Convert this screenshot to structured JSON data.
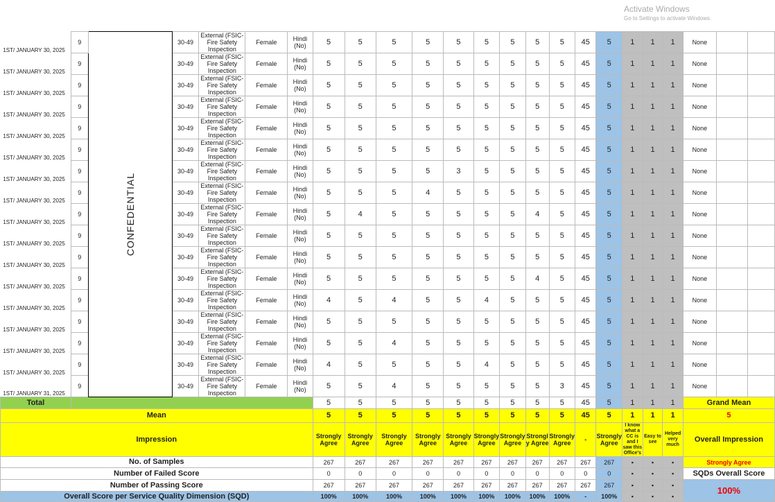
{
  "confidential_label": "CONFEDENTIAL",
  "rows": [
    {
      "date": "1ST/ JANUARY 30, 2025",
      "scores": [
        5,
        5,
        5,
        5,
        5,
        5,
        5,
        5,
        5
      ]
    },
    {
      "date": "1ST/ JANUARY 30, 2025",
      "scores": [
        5,
        5,
        5,
        5,
        5,
        5,
        5,
        5,
        5
      ]
    },
    {
      "date": "1ST/ JANUARY 30, 2025",
      "scores": [
        5,
        5,
        5,
        5,
        5,
        5,
        5,
        5,
        5
      ]
    },
    {
      "date": "1ST/ JANUARY 30, 2025",
      "scores": [
        5,
        5,
        5,
        5,
        5,
        5,
        5,
        5,
        5
      ]
    },
    {
      "date": "1ST/ JANUARY 30, 2025",
      "scores": [
        5,
        5,
        5,
        5,
        5,
        5,
        5,
        5,
        5
      ]
    },
    {
      "date": "1ST/ JANUARY 30, 2025",
      "scores": [
        5,
        5,
        5,
        5,
        5,
        5,
        5,
        5,
        5
      ]
    },
    {
      "date": "1ST/ JANUARY 30, 2025",
      "scores": [
        5,
        5,
        5,
        5,
        3,
        5,
        5,
        5,
        5
      ]
    },
    {
      "date": "1ST/ JANUARY 30, 2025",
      "scores": [
        5,
        5,
        5,
        4,
        5,
        5,
        5,
        5,
        5
      ]
    },
    {
      "date": "1ST/ JANUARY 30, 2025",
      "scores": [
        5,
        4,
        5,
        5,
        5,
        5,
        5,
        4,
        5
      ]
    },
    {
      "date": "1ST/ JANUARY 30, 2025",
      "scores": [
        5,
        5,
        5,
        5,
        5,
        5,
        5,
        5,
        5
      ]
    },
    {
      "date": "1ST/ JANUARY 30, 2025",
      "scores": [
        5,
        5,
        5,
        5,
        5,
        5,
        5,
        5,
        5
      ]
    },
    {
      "date": "1ST/ JANUARY 30, 2025",
      "scores": [
        5,
        5,
        5,
        5,
        5,
        5,
        5,
        4,
        5
      ]
    },
    {
      "date": "1ST/ JANUARY 30, 2025",
      "scores": [
        4,
        5,
        4,
        5,
        5,
        4,
        5,
        5,
        5
      ]
    },
    {
      "date": "1ST/ JANUARY 30, 2025",
      "scores": [
        5,
        5,
        5,
        5,
        5,
        5,
        5,
        5,
        5
      ]
    },
    {
      "date": "1ST/ JANUARY 30, 2025",
      "scores": [
        5,
        5,
        4,
        5,
        5,
        5,
        5,
        5,
        5
      ]
    },
    {
      "date": "1ST/ JANUARY 30, 2025",
      "scores": [
        4,
        5,
        5,
        5,
        5,
        4,
        5,
        5,
        5
      ]
    },
    {
      "date": "1ST/ JANUARY 31, 2025",
      "scores": [
        5,
        5,
        4,
        5,
        5,
        5,
        5,
        5,
        3
      ]
    }
  ],
  "row_common": {
    "count": "9",
    "age": "30-49",
    "service": "External (FSIC-Fire Safety Inspection",
    "sex": "Female",
    "language": "Hindi (No)",
    "total": "45",
    "sqd_blue": "5",
    "cc": [
      "1",
      "1",
      "1"
    ],
    "remarks": "None"
  },
  "summary": {
    "total_label": "Total",
    "total_values": [
      "5",
      "5",
      "5",
      "5",
      "5",
      "5",
      "5",
      "5",
      "5",
      "45",
      "5",
      "1",
      "1",
      "1"
    ],
    "mean_label": "Mean",
    "mean_values": [
      "5",
      "5",
      "5",
      "5",
      "5",
      "5",
      "5",
      "5",
      "5",
      "45",
      "5",
      "1",
      "1",
      "1"
    ],
    "impression_label": "Impression",
    "impression_values": [
      "Strongly Agree",
      "Strongly Agree",
      "Strongly Agree",
      "Strongly Agree",
      "Strongly Agree",
      "Strongly Agree",
      "Strongly Agree",
      "Strongl y Agree",
      "Strongly Agree",
      "-",
      "Strongly Agree",
      "I know what a CC is and I saw this Office's",
      "Easy to see",
      "Helped very much"
    ],
    "samples_label": "No. of Samples",
    "samples_values": [
      "267",
      "267",
      "267",
      "267",
      "267",
      "267",
      "267",
      "267",
      "267",
      "267",
      "267",
      "▪",
      "▪",
      "▪"
    ],
    "failed_label": "Number of Failed Score",
    "failed_values": [
      "0",
      "0",
      "0",
      "0",
      "0",
      "0",
      "0",
      "0",
      "0",
      "0",
      "0",
      "▪",
      "▪",
      "▪"
    ],
    "passing_label": "Number of Passing Score",
    "passing_values": [
      "267",
      "267",
      "267",
      "267",
      "267",
      "267",
      "267",
      "267",
      "267",
      "267",
      "267",
      "▪",
      "▪",
      "▪"
    ],
    "overall_label": "Overall Score per Service Quality Dimension (SQD)",
    "overall_values": [
      "100%",
      "100%",
      "100%",
      "100%",
      "100%",
      "100%",
      "100%",
      "100%",
      "100%",
      "-",
      "100%",
      "▪",
      "▪",
      "▪"
    ],
    "grand_mean_label": "Grand Mean",
    "grand_mean_value": "5",
    "overall_impression_label": "Overall Impression",
    "overall_impression_value": "Strongly Agree",
    "sqd_overall_label": "SQDs Overall Score",
    "sqd_overall_value": "100%"
  },
  "watermark": {
    "title": "Activate Windows",
    "sub": "Go to Settings to activate Windows."
  },
  "colors": {
    "yellow": "#ffff00",
    "green": "#92d050",
    "blue": "#9dc3e6",
    "gray": "#bfbfbf",
    "red": "#ff0000"
  }
}
